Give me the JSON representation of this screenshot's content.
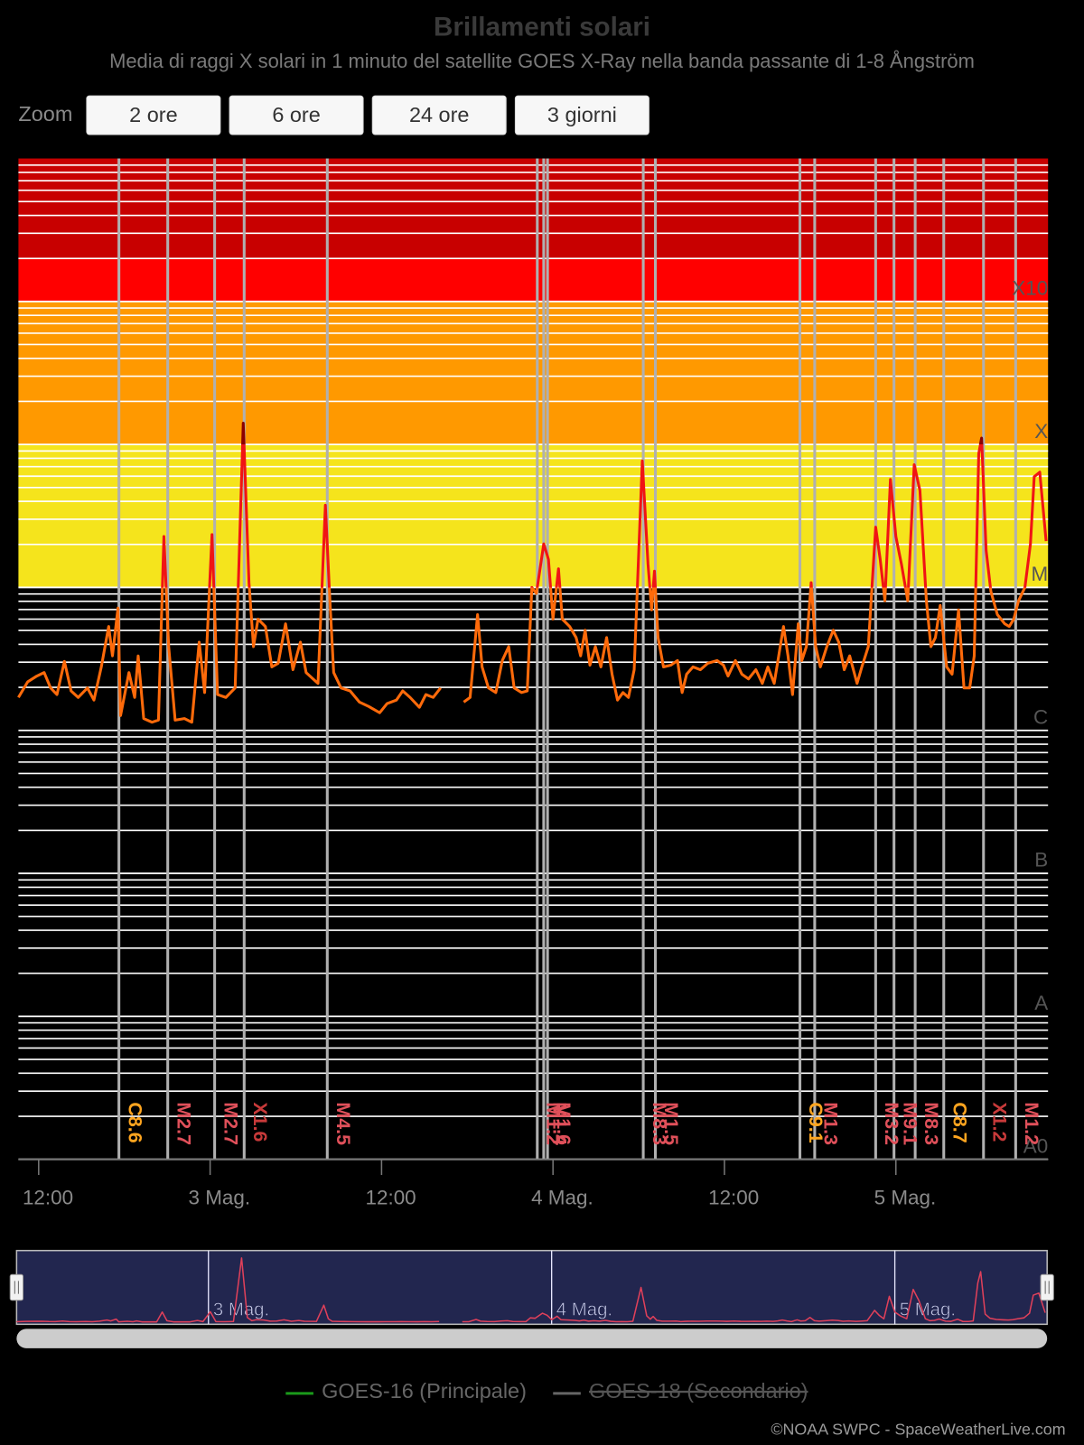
{
  "chart_data": {
    "type": "line",
    "title": "Brillamenti solari",
    "subtitle": "Media di raggi X solari in 1 minuto del satellite GOES X-Ray nella banda passante di 1-8 Ångström",
    "zoom_label": "Zoom",
    "zoom_buttons": [
      "2 ore",
      "6 ore",
      "24 ore",
      "3 giorni"
    ],
    "yscale": "log",
    "ylim": [
      1e-09,
      0.01
    ],
    "yticks": [
      {
        "value": 1e-09,
        "label": "A0"
      },
      {
        "value": 1e-08,
        "label": "A"
      },
      {
        "value": 1e-07,
        "label": "B"
      },
      {
        "value": 1e-06,
        "label": "C"
      },
      {
        "value": 1e-05,
        "label": "M"
      },
      {
        "value": 0.0001,
        "label": "X"
      },
      {
        "value": 0.001,
        "label": "X10"
      }
    ],
    "yminor_grid": true,
    "bands": [
      {
        "from": 1e-05,
        "to": 0.0001,
        "color": "#f5e41c"
      },
      {
        "from": 0.0001,
        "to": 0.001,
        "color": "#ff9900"
      },
      {
        "from": 0.001,
        "to": 0.002,
        "color": "#ff0000"
      },
      {
        "from": 0.002,
        "to": 0.01,
        "color": "#c80000"
      }
    ],
    "line_zones": [
      {
        "value": 1e-05,
        "color": "#ff6a0a"
      },
      {
        "value": 0.0001,
        "color": "#f01414"
      },
      {
        "color": "#8b0000"
      }
    ],
    "xlim": [
      "05-02T10:35",
      "05-05T10:39"
    ],
    "xticks": [
      {
        "value": "05-02T12:00",
        "label": "12:00"
      },
      {
        "value": "05-03T00:00",
        "label": "3 Mag."
      },
      {
        "value": "05-03T12:00",
        "label": "12:00"
      },
      {
        "value": "05-04T00:00",
        "label": "4 Mag."
      },
      {
        "value": "05-04T12:00",
        "label": "12:00"
      },
      {
        "value": "05-05T00:00",
        "label": "5 Mag."
      }
    ],
    "x": [
      "05-02T10:35",
      "05-02T11:14",
      "05-02T11:52",
      "05-02T12:23",
      "05-02T12:50",
      "05-02T13:17",
      "05-02T13:48",
      "05-02T14:16",
      "05-02T14:46",
      "05-02T15:25",
      "05-02T15:52",
      "05-02T16:23",
      "05-02T16:54",
      "05-02T17:10",
      "05-02T17:33",
      "05-02T17:44",
      "05-02T18:19",
      "05-02T18:43",
      "05-02T18:58",
      "05-02T19:21",
      "05-02T19:56",
      "05-02T20:23",
      "05-02T20:46",
      "05-02T21:06",
      "05-02T21:33",
      "05-02T22:12",
      "05-02T22:43",
      "05-02T23:14",
      "05-02T23:37",
      "05-03T00:08",
      "05-03T00:31",
      "05-03T01:06",
      "05-03T01:45",
      "05-03T02:19",
      "05-03T02:43",
      "05-03T03:02",
      "05-03T03:21",
      "05-03T03:52",
      "05-03T04:19",
      "05-03T04:46",
      "05-03T05:17",
      "05-03T05:48",
      "05-03T06:19",
      "05-03T06:43",
      "05-03T07:33",
      "05-03T08:04",
      "05-03T08:23",
      "05-03T08:39",
      "05-03T09:10",
      "05-03T09:48",
      "05-03T10:27",
      "05-03T11:06",
      "05-03T11:52",
      "05-03T12:23",
      "05-03T13:02",
      "05-03T13:29",
      "05-03T14:00",
      "05-03T14:39",
      "05-03T15:06",
      "05-03T15:37",
      "05-03T16:08",
      "05-03T16:31",
      "05-03T17:45",
      "05-03T18:12",
      "05-03T18:43",
      "05-03T19:02",
      "05-03T19:29",
      "05-03T20:00",
      "05-03T20:27",
      "05-03T20:54",
      "05-03T21:17",
      "05-03T21:48",
      "05-03T22:12",
      "05-03T22:31",
      "05-03T22:50",
      "05-03T23:21",
      "05-03T23:41",
      "05-04T00:00",
      "05-04T00:23",
      "05-04T00:39",
      "05-04T01:10",
      "05-04T01:37",
      "05-04T01:56",
      "05-04T02:15",
      "05-04T02:35",
      "05-04T02:58",
      "05-04T03:21",
      "05-04T03:45",
      "05-04T04:08",
      "05-04T04:31",
      "05-04T04:54",
      "05-04T05:17",
      "05-04T05:41",
      "05-04T06:15",
      "05-04T06:39",
      "05-04T06:54",
      "05-04T07:06",
      "05-04T07:21",
      "05-04T07:44",
      "05-04T08:15",
      "05-04T08:43",
      "05-04T09:02",
      "05-04T09:21",
      "05-04T09:48",
      "05-04T10:19",
      "05-04T10:50",
      "05-04T11:29",
      "05-04T11:56",
      "05-04T12:15",
      "05-04T12:46",
      "05-04T13:13",
      "05-04T13:41",
      "05-04T14:12",
      "05-04T14:39",
      "05-04T15:02",
      "05-04T15:29",
      "05-04T15:48",
      "05-04T16:08",
      "05-04T16:27",
      "05-04T16:46",
      "05-04T17:10",
      "05-04T17:25",
      "05-04T17:44",
      "05-04T18:04",
      "05-04T18:23",
      "05-04T18:43",
      "05-04T19:10",
      "05-04T19:37",
      "05-04T20:00",
      "05-04T20:23",
      "05-04T20:46",
      "05-04T21:17",
      "05-04T21:37",
      "05-04T22:04",
      "05-04T22:35",
      "05-04T22:54",
      "05-04T23:14",
      "05-04T23:37",
      "05-05T00:00",
      "05-05T00:23",
      "05-05T00:50",
      "05-05T01:17",
      "05-05T01:41",
      "05-05T02:08",
      "05-05T02:27",
      "05-05T02:46",
      "05-05T03:06",
      "05-05T03:33",
      "05-05T03:56",
      "05-05T04:23",
      "05-05T04:46",
      "05-05T05:10",
      "05-05T05:29",
      "05-05T05:48",
      "05-05T06:00",
      "05-05T06:19",
      "05-05T06:39",
      "05-05T07:06",
      "05-05T07:37",
      "05-05T07:56",
      "05-05T08:15",
      "05-05T08:35",
      "05-05T09:02",
      "05-05T09:25",
      "05-05T09:41",
      "05-05T10:04",
      "05-05T10:31"
    ],
    "series": [
      {
        "name": "GOES-16 (Principale)",
        "color": "#1a9a1a",
        "visible": true,
        "values": [
          1.7e-06,
          2.19e-06,
          2.4e-06,
          2.54e-06,
          1.98e-06,
          1.78e-06,
          3.04e-06,
          1.89e-06,
          1.7e-06,
          1.98e-06,
          1.63e-06,
          2.78e-06,
          5.33e-06,
          3.32e-06,
          7.17e-06,
          1.27e-06,
          2.54e-06,
          1.7e-06,
          3.32e-06,
          1.21e-06,
          1.14e-06,
          1.18e-06,
          2.27e-05,
          3.85e-06,
          1.18e-06,
          1.21e-06,
          1.14e-06,
          4.14e-06,
          1.84e-06,
          2.34e-05,
          1.78e-06,
          1.7e-06,
          1.98e-06,
          0.000141,
          1.08e-05,
          3.85e-06,
          6e-06,
          5.33e-06,
          2.78e-06,
          2.95e-06,
          5.57e-06,
          2.66e-06,
          4.14e-06,
          2.54e-06,
          2.13e-06,
          3.76e-05,
          8.07e-06,
          2.54e-06,
          1.98e-06,
          1.89e-06,
          1.58e-06,
          1.47e-06,
          1.33e-06,
          1.54e-06,
          1.63e-06,
          1.89e-06,
          1.7e-06,
          1.45e-06,
          1.78e-06,
          1.7e-06,
          1.98e-06,
          null,
          1.58e-06,
          1.7e-06,
          6.46e-06,
          2.78e-06,
          1.98e-06,
          1.84e-06,
          3.08e-06,
          3.85e-06,
          1.98e-06,
          1.84e-06,
          1.89e-06,
          1e-05,
          9.08e-06,
          2.02e-05,
          1.57e-05,
          6e-06,
          1.35e-05,
          6e-06,
          5.33e-06,
          4.46e-06,
          3.32e-06,
          5.02e-06,
          2.86e-06,
          3.85e-06,
          2.78e-06,
          4.46e-06,
          2.47e-06,
          1.63e-06,
          1.84e-06,
          1.7e-06,
          2.66e-06,
          7.66e-05,
          1.46e-05,
          6.96e-06,
          1.3e-05,
          4.46e-06,
          2.78e-06,
          2.86e-06,
          3.08e-06,
          1.84e-06,
          2.47e-06,
          2.78e-06,
          2.66e-06,
          2.95e-06,
          3.08e-06,
          2.86e-06,
          2.4e-06,
          3.08e-06,
          2.47e-06,
          2.29e-06,
          2.66e-06,
          2.13e-06,
          2.78e-06,
          2.13e-06,
          3.32e-06,
          5.33e-06,
          3.32e-06,
          1.78e-06,
          5.57e-06,
          3.08e-06,
          3.85e-06,
          1.08e-05,
          3.85e-06,
          2.78e-06,
          3.85e-06,
          5.02e-06,
          4.14e-06,
          2.66e-06,
          3.32e-06,
          2.13e-06,
          2.78e-06,
          3.85e-06,
          2.64e-05,
          1.57e-05,
          8.07e-06,
          5.7e-05,
          2.27e-05,
          1.46e-05,
          8.07e-06,
          7.22e-05,
          4.77e-05,
          8.07e-06,
          3.85e-06,
          4.46e-06,
          7.49e-06,
          2.78e-06,
          2.47e-06,
          6.96e-06,
          1.98e-06,
          1.98e-06,
          3.32e-06,
          8.62e-05,
          0.000111,
          1.82e-05,
          9.36e-06,
          6.46e-06,
          5.57e-06,
          5.33e-06,
          6e-06,
          8.07e-06,
          1e-05,
          2.02e-05,
          5.96e-05,
          6.41e-05,
          2.11e-05
        ]
      },
      {
        "name": "GOES-18 (Secondario)",
        "color": "#888888",
        "visible": false
      }
    ],
    "flares": [
      {
        "time": "05-02T17:37",
        "label": "C8.6",
        "color": "#ffa51f"
      },
      {
        "time": "05-02T21:02",
        "label": "M2.7",
        "color": "#e0505a"
      },
      {
        "time": "05-03T00:19",
        "label": "M2.7",
        "color": "#e0505a"
      },
      {
        "time": "05-03T02:23",
        "label": "X1.6",
        "color": "#c83a3a"
      },
      {
        "time": "05-03T08:12",
        "label": "M4.5",
        "color": "#e0505a"
      },
      {
        "time": "05-03T22:54",
        "label": "M1.2",
        "color": "#e0505a"
      },
      {
        "time": "05-03T23:21",
        "label": "M1.4",
        "color": "#e0505a"
      },
      {
        "time": "05-03T23:37",
        "label": "M1.6",
        "color": "#e0505a"
      },
      {
        "time": "05-04T06:19",
        "label": "M8.3",
        "color": "#e0505a"
      },
      {
        "time": "05-04T07:10",
        "label": "M1.5",
        "color": "#e0505a"
      },
      {
        "time": "05-04T17:17",
        "label": "C9.1",
        "color": "#ffa51f"
      },
      {
        "time": "05-04T18:19",
        "label": "M1.3",
        "color": "#e0505a"
      },
      {
        "time": "05-04T22:35",
        "label": "M3.2",
        "color": "#e0505a"
      },
      {
        "time": "05-04T23:52",
        "label": "M9.1",
        "color": "#e0505a"
      },
      {
        "time": "05-05T01:21",
        "label": "M8.3",
        "color": "#e0505a"
      },
      {
        "time": "05-05T03:21",
        "label": "C8.7",
        "color": "#ffa51f"
      },
      {
        "time": "05-05T06:08",
        "label": "X1.2",
        "color": "#c83a3a"
      },
      {
        "time": "05-05T08:23",
        "label": "M1.2",
        "color": "#e0505a"
      }
    ],
    "navigator_color": "#e0405a",
    "credit": "©NOAA SWPC - SpaceWeatherLive.com"
  }
}
